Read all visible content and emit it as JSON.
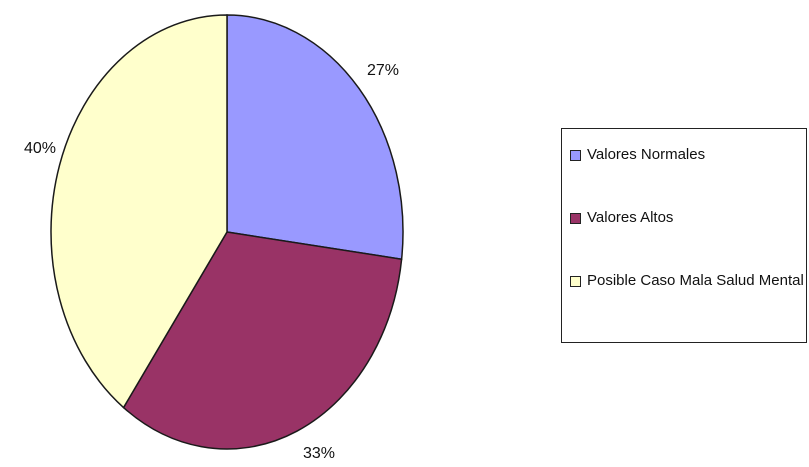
{
  "chart_data": {
    "type": "pie",
    "title": "",
    "legend_position": "right",
    "slices": [
      {
        "label": "Valores Normales",
        "value": 27,
        "value_label": "27%",
        "color": "#9999ff"
      },
      {
        "label": "Valores Altos",
        "value": 33,
        "value_label": "33%",
        "color": "#993366"
      },
      {
        "label": "Posible Caso Mala Salud Mental",
        "value": 40,
        "value_label": "40%",
        "color": "#ffffcc"
      }
    ]
  },
  "legend": {
    "items": [
      {
        "label": "Valores Normales"
      },
      {
        "label": "Valores Altos"
      },
      {
        "label": "Posible Caso Mala Salud Mental"
      }
    ]
  }
}
